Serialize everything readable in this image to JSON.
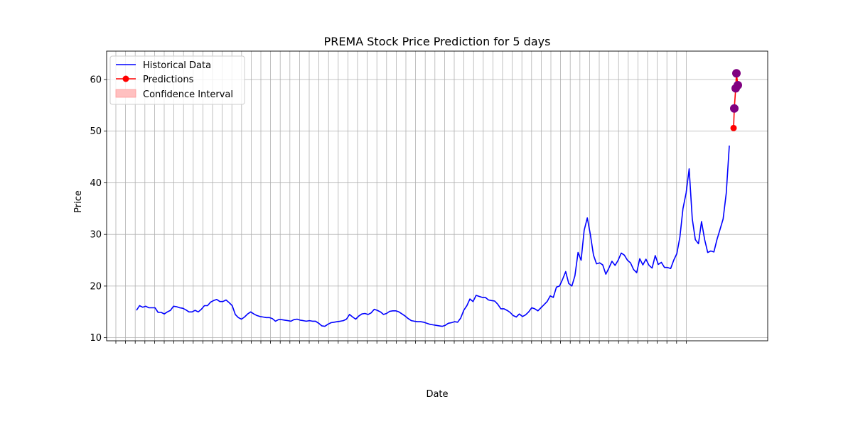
{
  "chart_data": {
    "type": "line",
    "title": "PREMA Stock Price Prediction for 5 days",
    "xlabel": "Date",
    "ylabel": "Price",
    "ylim": [
      9.4,
      65.5
    ],
    "yticks": [
      10,
      20,
      30,
      40,
      50,
      60
    ],
    "grid": true,
    "legend_position": "top-left",
    "x_tick_count": 60,
    "historical": {
      "name": "Historical Data",
      "color": "#0000ff",
      "values": [
        15.3,
        16.2,
        15.9,
        16.1,
        15.8,
        15.8,
        15.8,
        14.9,
        14.9,
        14.6,
        15.0,
        15.3,
        16.1,
        16.0,
        15.8,
        15.7,
        15.4,
        15.0,
        15.0,
        15.3,
        15.0,
        15.5,
        16.2,
        16.2,
        16.9,
        17.2,
        17.4,
        17.0,
        17.0,
        17.3,
        16.8,
        16.2,
        14.5,
        13.9,
        13.6,
        14.0,
        14.6,
        15.0,
        14.6,
        14.3,
        14.1,
        14.0,
        13.9,
        13.9,
        13.7,
        13.2,
        13.5,
        13.5,
        13.4,
        13.3,
        13.2,
        13.5,
        13.6,
        13.4,
        13.3,
        13.2,
        13.3,
        13.2,
        13.2,
        12.8,
        12.3,
        12.2,
        12.6,
        12.9,
        13.0,
        13.1,
        13.2,
        13.3,
        13.6,
        14.5,
        14.0,
        13.6,
        14.2,
        14.6,
        14.7,
        14.5,
        14.8,
        15.5,
        15.3,
        15.0,
        14.5,
        14.7,
        15.1,
        15.2,
        15.2,
        15.0,
        14.6,
        14.2,
        13.7,
        13.3,
        13.2,
        13.1,
        13.1,
        13.0,
        12.8,
        12.6,
        12.5,
        12.4,
        12.3,
        12.2,
        12.4,
        12.8,
        12.9,
        13.1,
        13.0,
        13.8,
        15.3,
        16.2,
        17.5,
        17.0,
        18.2,
        18.0,
        17.8,
        17.8,
        17.3,
        17.2,
        17.1,
        16.5,
        15.6,
        15.6,
        15.3,
        14.9,
        14.3,
        14.0,
        14.6,
        14.1,
        14.4,
        15.0,
        15.8,
        15.6,
        15.2,
        15.8,
        16.4,
        17.0,
        18.1,
        17.8,
        19.8,
        20.0,
        21.3,
        22.8,
        20.5,
        20.0,
        22.0,
        26.5,
        25.0,
        30.8,
        33.2,
        30.0,
        26.0,
        24.3,
        24.5,
        24.1,
        22.3,
        23.5,
        24.8,
        24.0,
        25.0,
        26.4,
        26.0,
        25.0,
        24.5,
        23.2,
        22.6,
        25.3,
        24.1,
        25.2,
        24.0,
        23.5,
        25.9,
        24.2,
        24.6,
        23.6,
        23.6,
        23.4,
        25.0,
        26.3,
        29.5,
        35.0,
        38.0,
        42.7,
        33.0,
        29.0,
        28.2,
        32.5,
        29.0,
        26.5,
        26.8,
        26.6,
        29.0,
        31.0,
        33.0,
        38.0,
        47.2
      ]
    },
    "predictions": {
      "name": "Predictions",
      "color": "#ff0000",
      "values": [
        50.6,
        54.4,
        58.3,
        61.2,
        58.9
      ]
    },
    "confidence_interval": {
      "name": "Confidence Interval",
      "color": "#ff0000",
      "markers": [
        54.4,
        58.3,
        61.2,
        58.9
      ],
      "marker_color": "#800080"
    }
  }
}
